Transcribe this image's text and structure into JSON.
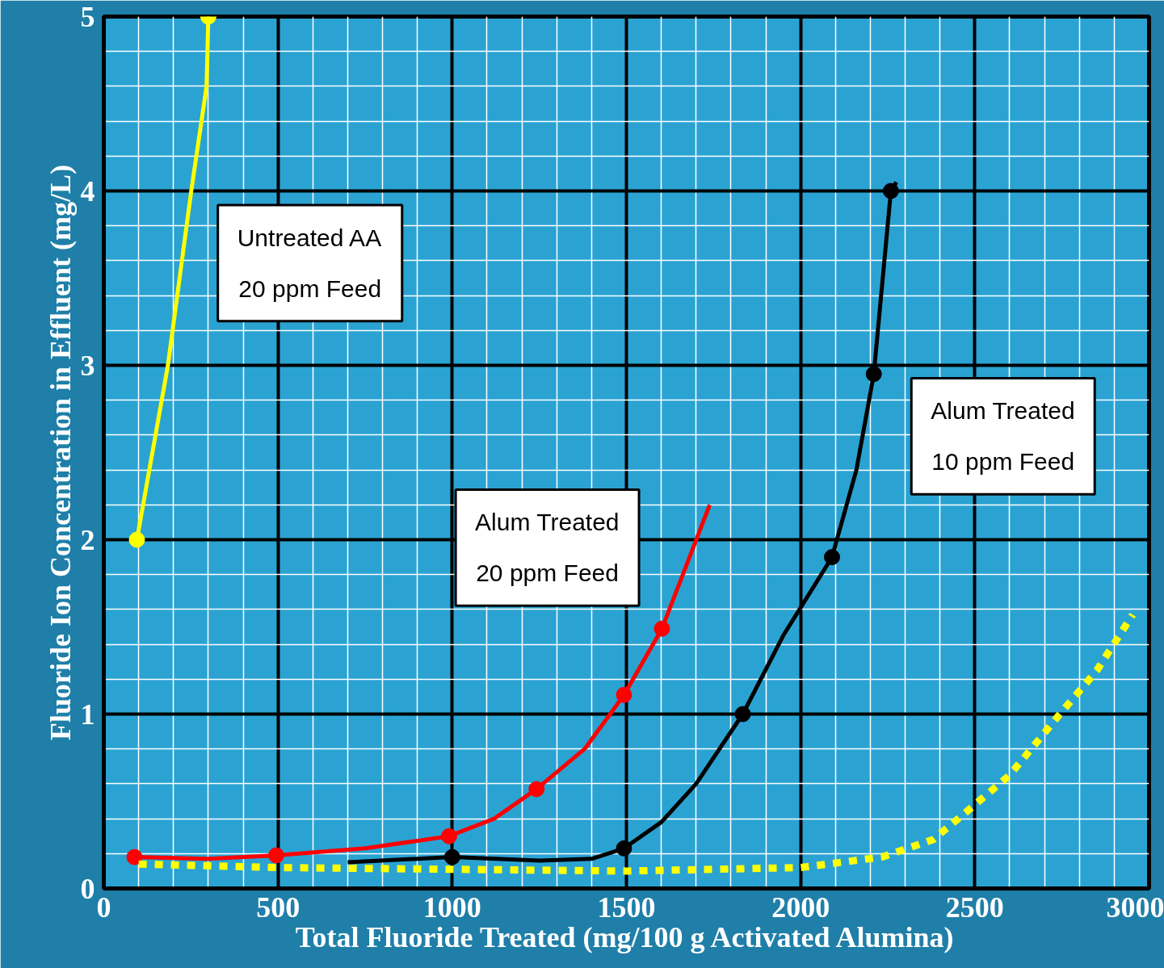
{
  "chart_data": {
    "type": "line",
    "xlabel": "Total Fluoride Treated (mg/100 g Activated Alumina)",
    "ylabel": "Fluoride Ion Concentration in Effluent (mg/L)",
    "xlim": [
      0,
      3000
    ],
    "ylim": [
      0,
      5
    ],
    "xticks": [
      0,
      500,
      1000,
      1500,
      2000,
      2500,
      3000
    ],
    "yticks": [
      0,
      1,
      2,
      3,
      4,
      5
    ],
    "grid": true,
    "series": [
      {
        "name": "Untreated AA\n20 ppm Feed",
        "color": "#ffff00",
        "line_style": "solid",
        "x": [
          95,
          184,
          251,
          295,
          300
        ],
        "values": [
          2.0,
          3.0,
          4.0,
          4.6,
          5.0
        ]
      },
      {
        "type": "scatter",
        "color": "#ffff00",
        "marker": "circle",
        "x": [
          95,
          300
        ],
        "values": [
          2.0,
          5.0
        ]
      },
      {
        "name": "Alum Treated\n20 ppm Feed",
        "color": "#ff0000",
        "line_style": "solid",
        "x": [
          88,
          300,
          495,
          750,
          991,
          1120,
          1242,
          1380,
          1493,
          1602,
          1739
        ],
        "values": [
          0.18,
          0.17,
          0.19,
          0.23,
          0.3,
          0.4,
          0.57,
          0.8,
          1.11,
          1.49,
          2.2
        ]
      },
      {
        "type": "scatter",
        "color": "#ff0000",
        "marker": "circle",
        "x": [
          88,
          495,
          991,
          1242,
          1493,
          1602
        ],
        "values": [
          0.18,
          0.19,
          0.3,
          0.57,
          1.11,
          1.49
        ]
      },
      {
        "name": "Alum Treated\n10 ppm Feed",
        "color": "#000000",
        "line_style": "solid",
        "x": [
          700,
          1000,
          1250,
          1400,
          1493,
          1600,
          1700,
          1834,
          1950,
          2090,
          2160,
          2210,
          2259,
          2275
        ],
        "values": [
          0.15,
          0.18,
          0.16,
          0.17,
          0.23,
          0.38,
          0.6,
          1.0,
          1.45,
          1.9,
          2.4,
          2.95,
          4.0,
          4.05
        ]
      },
      {
        "type": "scatter",
        "color": "#000000",
        "marker": "circle",
        "x": [
          1000,
          1493,
          1834,
          2090,
          2210,
          2259
        ],
        "values": [
          0.18,
          0.23,
          1.0,
          1.9,
          2.95,
          4.0
        ]
      },
      {
        "color": "#ffff00",
        "line_style": "dotted",
        "x": [
          100,
          500,
          1000,
          1500,
          2000,
          2233,
          2380,
          2482,
          2600,
          2744,
          2850,
          2953
        ],
        "values": [
          0.14,
          0.12,
          0.11,
          0.1,
          0.12,
          0.18,
          0.28,
          0.45,
          0.65,
          1.0,
          1.25,
          1.57
        ]
      }
    ]
  }
}
